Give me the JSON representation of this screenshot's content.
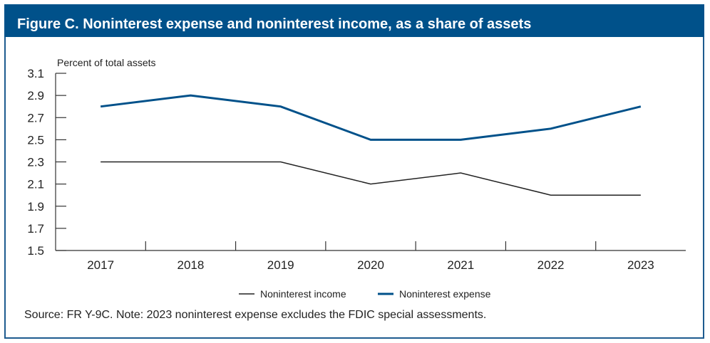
{
  "title": "Figure C. Noninterest expense and noninterest income, as a share of assets",
  "source_note": "Source: FR Y-9C. Note: 2023 noninterest expense excludes the FDIC special assessments.",
  "colors": {
    "title_bg": "#00518a",
    "expense": "#00518a",
    "income": "#222222",
    "border": "#1e5b8f"
  },
  "chart_data": {
    "type": "line",
    "title": "Figure C. Noninterest expense and noninterest income, as a share of assets",
    "xlabel": "",
    "ylabel": "Percent of total assets",
    "categories": [
      "2017",
      "2018",
      "2019",
      "2020",
      "2021",
      "2022",
      "2023"
    ],
    "ylim": [
      1.5,
      3.1
    ],
    "yticks": [
      "3.1",
      "2.9",
      "2.7",
      "2.5",
      "2.3",
      "2.1",
      "1.9",
      "1.7",
      "1.5"
    ],
    "grid": false,
    "legend_position": "bottom",
    "series": [
      {
        "name": "Noninterest income",
        "color": "#222222",
        "values": [
          2.3,
          2.3,
          2.3,
          2.1,
          2.2,
          2.0,
          2.0
        ]
      },
      {
        "name": "Noninterest expense",
        "color": "#00518a",
        "values": [
          2.8,
          2.9,
          2.8,
          2.5,
          2.5,
          2.6,
          2.8
        ]
      }
    ]
  }
}
